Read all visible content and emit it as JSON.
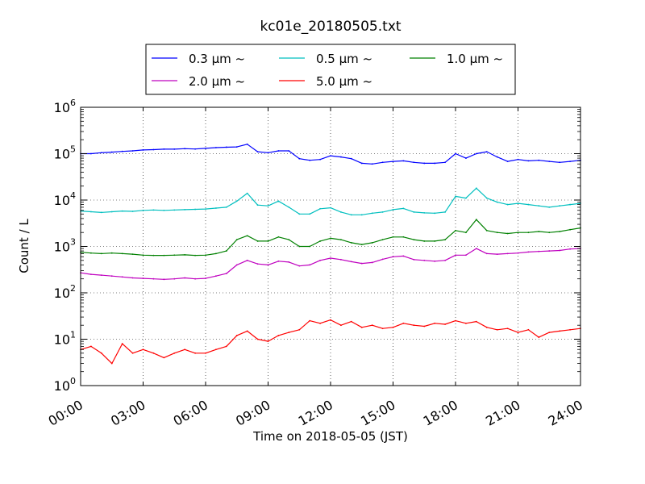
{
  "chart_data": {
    "type": "line",
    "title": "kc01e_20180505.txt",
    "xlabel": "Time on 2018-05-05 (JST)",
    "ylabel": "Count / L",
    "yscale": "log",
    "ylim": [
      1,
      1000000
    ],
    "xlim": [
      "00:00",
      "24:00"
    ],
    "grid": true,
    "legend_position": "top-center (outside, above plot)",
    "x_ticks": [
      "00:00",
      "03:00",
      "06:00",
      "09:00",
      "12:00",
      "15:00",
      "18:00",
      "21:00",
      "24:00"
    ],
    "y_ticks": [
      {
        "base": "10",
        "exp": "0",
        "value": 1
      },
      {
        "base": "10",
        "exp": "1",
        "value": 10
      },
      {
        "base": "10",
        "exp": "2",
        "value": 100
      },
      {
        "base": "10",
        "exp": "3",
        "value": 1000
      },
      {
        "base": "10",
        "exp": "4",
        "value": 10000
      },
      {
        "base": "10",
        "exp": "5",
        "value": 100000
      },
      {
        "base": "10",
        "exp": "6",
        "value": 1000000
      }
    ],
    "x": [
      "00:00",
      "00:30",
      "01:00",
      "01:30",
      "02:00",
      "02:30",
      "03:00",
      "03:30",
      "04:00",
      "04:30",
      "05:00",
      "05:30",
      "06:00",
      "06:30",
      "07:00",
      "07:30",
      "08:00",
      "08:30",
      "09:00",
      "09:30",
      "10:00",
      "10:30",
      "11:00",
      "11:30",
      "12:00",
      "12:30",
      "13:00",
      "13:30",
      "14:00",
      "14:30",
      "15:00",
      "15:30",
      "16:00",
      "16:30",
      "17:00",
      "17:30",
      "18:00",
      "18:30",
      "19:00",
      "19:30",
      "20:00",
      "20:30",
      "21:00",
      "21:30",
      "22:00",
      "22:30",
      "23:00",
      "23:30",
      "24:00"
    ],
    "series": [
      {
        "name": "0.3 μm ~",
        "color": "#0000ff",
        "values": [
          100000,
          100000,
          105000,
          108000,
          112000,
          115000,
          120000,
          122000,
          125000,
          125000,
          128000,
          126000,
          130000,
          135000,
          138000,
          140000,
          160000,
          110000,
          105000,
          115000,
          115000,
          78000,
          72000,
          75000,
          90000,
          85000,
          78000,
          62000,
          60000,
          65000,
          68000,
          70000,
          65000,
          62000,
          62000,
          65000,
          100000,
          80000,
          100000,
          110000,
          85000,
          68000,
          75000,
          70000,
          72000,
          68000,
          65000,
          68000,
          72000
        ]
      },
      {
        "name": "0.5 μm ~",
        "color": "#00bfbf",
        "values": [
          5800,
          5600,
          5400,
          5600,
          5800,
          5700,
          6000,
          6100,
          6000,
          6100,
          6200,
          6300,
          6400,
          6700,
          7000,
          9500,
          14000,
          7800,
          7500,
          9500,
          7000,
          5000,
          5000,
          6500,
          6800,
          5500,
          4800,
          4800,
          5200,
          5500,
          6200,
          6600,
          5500,
          5300,
          5200,
          5500,
          12000,
          11000,
          18000,
          11000,
          9000,
          8000,
          8500,
          8000,
          7500,
          7000,
          7500,
          8000,
          8500
        ]
      },
      {
        "name": "1.0 μm ~",
        "color": "#008000",
        "values": [
          750,
          720,
          700,
          720,
          700,
          680,
          650,
          640,
          640,
          650,
          660,
          640,
          650,
          700,
          800,
          1400,
          1700,
          1300,
          1300,
          1600,
          1400,
          1000,
          1000,
          1300,
          1500,
          1400,
          1200,
          1100,
          1200,
          1400,
          1600,
          1600,
          1400,
          1300,
          1300,
          1400,
          2200,
          2000,
          3800,
          2200,
          2000,
          1900,
          2000,
          2000,
          2100,
          2000,
          2100,
          2300,
          2500
        ]
      },
      {
        "name": "2.0 μm ~",
        "color": "#bf00bf",
        "values": [
          270,
          250,
          240,
          230,
          220,
          210,
          205,
          200,
          195,
          200,
          210,
          200,
          205,
          230,
          260,
          400,
          500,
          420,
          400,
          480,
          460,
          380,
          400,
          500,
          560,
          520,
          470,
          430,
          450,
          530,
          600,
          620,
          520,
          500,
          480,
          500,
          650,
          650,
          900,
          700,
          680,
          700,
          720,
          760,
          780,
          800,
          820,
          880,
          900
        ]
      },
      {
        "name": "5.0 μm ~",
        "color": "#ff0000",
        "values": [
          6,
          7,
          5,
          3,
          8,
          5,
          6,
          5,
          4,
          5,
          6,
          5,
          5,
          6,
          7,
          12,
          15,
          10,
          9,
          12,
          14,
          16,
          25,
          22,
          26,
          20,
          24,
          18,
          20,
          17,
          18,
          22,
          20,
          19,
          22,
          21,
          25,
          22,
          24,
          18,
          16,
          17,
          14,
          16,
          11,
          14,
          15,
          16,
          17
        ]
      }
    ]
  }
}
